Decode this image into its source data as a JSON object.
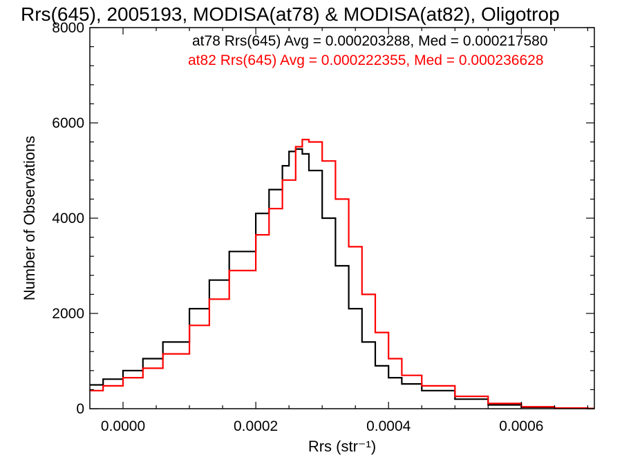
{
  "chart_data": {
    "type": "line",
    "title": "Rrs(645), 2005193, MODISA(at78) & MODISA(at82), Oligotrop",
    "xlabel": "Rrs (str⁻¹)",
    "ylabel": "Number of Observations",
    "xlim": [
      -5e-05,
      0.00071
    ],
    "ylim": [
      0,
      8000
    ],
    "xticks": [
      "0.0000",
      "0.0002",
      "0.0004",
      "0.0006"
    ],
    "xtick_values": [
      0.0,
      0.0002,
      0.0004,
      0.0006
    ],
    "yticks": [
      "0",
      "2000",
      "4000",
      "6000",
      "8000"
    ],
    "ytick_values": [
      0,
      2000,
      4000,
      6000,
      8000
    ],
    "grid": false,
    "legend_position": "top-right",
    "series": [
      {
        "name": "at78",
        "label": "at78 Rrs(645) Avg = 0.000203288, Med = 0.000217580",
        "color": "#000000",
        "x": [
          -5e-05,
          -3e-05,
          0.0,
          3e-05,
          6e-05,
          0.0001,
          0.00013,
          0.00016,
          0.0002,
          0.00022,
          0.00024,
          0.00025,
          0.00026,
          0.00027,
          0.00028,
          0.0003,
          0.00032,
          0.00034,
          0.00036,
          0.00038,
          0.0004,
          0.00042,
          0.00045,
          0.0005,
          0.00055,
          0.0006,
          0.00065,
          0.0007
        ],
        "y": [
          500,
          620,
          800,
          1050,
          1400,
          2100,
          2700,
          3300,
          4100,
          4600,
          5100,
          5400,
          5450,
          5350,
          5000,
          4000,
          3000,
          2100,
          1400,
          900,
          650,
          520,
          380,
          200,
          80,
          30,
          10,
          5
        ]
      },
      {
        "name": "at82",
        "label": "at82 Rrs(645) Avg = 0.000222355, Med = 0.000236628",
        "color": "#ff0000",
        "x": [
          -5e-05,
          -3e-05,
          0.0,
          3e-05,
          6e-05,
          0.0001,
          0.00013,
          0.00016,
          0.0002,
          0.00022,
          0.00024,
          0.00026,
          0.00027,
          0.00028,
          0.0003,
          0.00032,
          0.00034,
          0.00036,
          0.00038,
          0.0004,
          0.00042,
          0.00045,
          0.0005,
          0.00055,
          0.0006,
          0.00065,
          0.0007
        ],
        "y": [
          380,
          480,
          650,
          850,
          1150,
          1750,
          2300,
          2900,
          3650,
          4200,
          4800,
          5500,
          5650,
          5600,
          5200,
          4400,
          3400,
          2400,
          1600,
          1050,
          700,
          480,
          260,
          110,
          40,
          15,
          5
        ]
      }
    ]
  }
}
